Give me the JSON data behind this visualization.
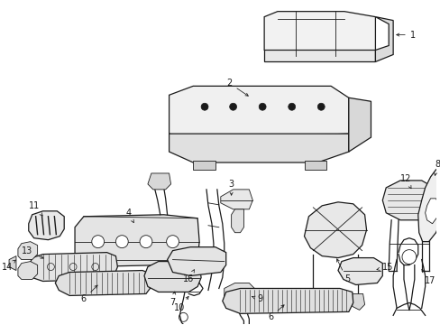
{
  "bg_color": "#ffffff",
  "line_color": "#1a1a1a",
  "fig_width": 4.89,
  "fig_height": 3.6,
  "dpi": 100,
  "label_fontsize": 7.0
}
